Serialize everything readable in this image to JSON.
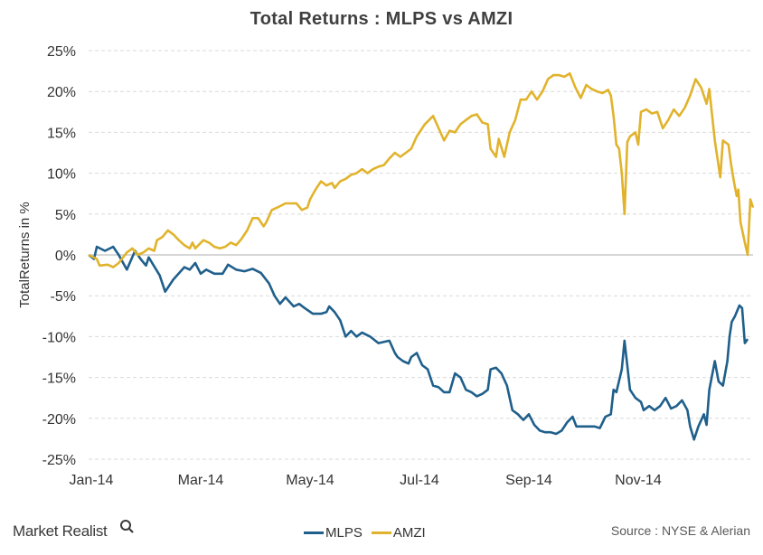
{
  "header": {
    "title": "Total Returns : MLPS vs AMZI"
  },
  "footer": {
    "brand": "Market Realist",
    "source": "Source : NYSE & Alerian"
  },
  "colors": {
    "mlps": "#1f5f8b",
    "amzi": "#e1b32c",
    "grid": "#d9d9d9",
    "zero_line": "#bfbfbf"
  },
  "chart_data": {
    "type": "line",
    "title": "Total Returns : MLPS vs AMZI",
    "ylabel": "TotalReturns in %",
    "xlabel": "",
    "xlim": [
      0,
      11.5
    ],
    "ylim": [
      -25,
      25
    ],
    "grid": true,
    "grid_style": "dashed horizontal",
    "legend_position": "bottom",
    "x_ticks": [
      {
        "x": 0,
        "label": "Jan-14"
      },
      {
        "x": 2,
        "label": "Mar-14"
      },
      {
        "x": 4,
        "label": "May-14"
      },
      {
        "x": 6,
        "label": "Jul-14"
      },
      {
        "x": 8,
        "label": "Sep-14"
      },
      {
        "x": 10,
        "label": "Nov-14"
      }
    ],
    "y_ticks": [
      {
        "y": 25,
        "label": "25%"
      },
      {
        "y": 20,
        "label": "20%"
      },
      {
        "y": 15,
        "label": "15%"
      },
      {
        "y": 10,
        "label": "10%"
      },
      {
        "y": 5,
        "label": "5%"
      },
      {
        "y": 0,
        "label": "0%"
      },
      {
        "y": -5,
        "label": "-5%"
      },
      {
        "y": -10,
        "label": "-10%"
      },
      {
        "y": -15,
        "label": "-15%"
      },
      {
        "y": -20,
        "label": "-20%"
      },
      {
        "y": -25,
        "label": "-25%"
      }
    ],
    "series": [
      {
        "name": "MLPS",
        "color": "#1f5f8b",
        "points": [
          [
            0,
            0
          ],
          [
            0.1,
            -0.5
          ],
          [
            0.15,
            1
          ],
          [
            0.3,
            0.5
          ],
          [
            0.45,
            1
          ],
          [
            0.55,
            0
          ],
          [
            0.7,
            -1.8
          ],
          [
            0.85,
            0.5
          ],
          [
            0.95,
            -0.5
          ],
          [
            1.05,
            -1.3
          ],
          [
            1.1,
            -0.3
          ],
          [
            1.3,
            -2.5
          ],
          [
            1.4,
            -4.5
          ],
          [
            1.55,
            -3
          ],
          [
            1.75,
            -1.5
          ],
          [
            1.85,
            -1.8
          ],
          [
            1.95,
            -1
          ],
          [
            2.05,
            -2.3
          ],
          [
            2.15,
            -1.8
          ],
          [
            2.3,
            -2.3
          ],
          [
            2.45,
            -2.3
          ],
          [
            2.55,
            -1.2
          ],
          [
            2.7,
            -1.8
          ],
          [
            2.85,
            -2
          ],
          [
            3.0,
            -1.7
          ],
          [
            3.15,
            -2.2
          ],
          [
            3.3,
            -3.5
          ],
          [
            3.4,
            -5
          ],
          [
            3.5,
            -6
          ],
          [
            3.6,
            -5.2
          ],
          [
            3.75,
            -6.3
          ],
          [
            3.85,
            -6
          ],
          [
            3.95,
            -6.5
          ],
          [
            4.1,
            -7.2
          ],
          [
            4.25,
            -7.2
          ],
          [
            4.35,
            -7
          ],
          [
            4.4,
            -6.3
          ],
          [
            4.5,
            -7
          ],
          [
            4.6,
            -8
          ],
          [
            4.7,
            -10
          ],
          [
            4.8,
            -9.3
          ],
          [
            4.9,
            -10
          ],
          [
            5.0,
            -9.5
          ],
          [
            5.15,
            -10
          ],
          [
            5.3,
            -10.8
          ],
          [
            5.5,
            -10.5
          ],
          [
            5.6,
            -12
          ],
          [
            5.65,
            -12.5
          ],
          [
            5.75,
            -13
          ],
          [
            5.85,
            -13.3
          ],
          [
            5.9,
            -12.5
          ],
          [
            6.0,
            -12
          ],
          [
            6.1,
            -13.5
          ],
          [
            6.2,
            -14
          ],
          [
            6.3,
            -16
          ],
          [
            6.4,
            -16.2
          ],
          [
            6.5,
            -16.8
          ],
          [
            6.6,
            -16.8
          ],
          [
            6.7,
            -14.5
          ],
          [
            6.8,
            -15
          ],
          [
            6.9,
            -16.5
          ],
          [
            7.0,
            -16.8
          ],
          [
            7.1,
            -17.3
          ],
          [
            7.2,
            -17
          ],
          [
            7.3,
            -16.5
          ],
          [
            7.35,
            -14
          ],
          [
            7.45,
            -13.8
          ],
          [
            7.55,
            -14.5
          ],
          [
            7.65,
            -16
          ],
          [
            7.75,
            -19
          ],
          [
            7.85,
            -19.5
          ],
          [
            7.95,
            -20.2
          ],
          [
            8.05,
            -19.5
          ],
          [
            8.15,
            -20.8
          ],
          [
            8.25,
            -21.5
          ],
          [
            8.35,
            -21.7
          ],
          [
            8.45,
            -21.7
          ],
          [
            8.55,
            -21.9
          ],
          [
            8.65,
            -21.5
          ],
          [
            8.75,
            -20.5
          ],
          [
            8.85,
            -19.8
          ],
          [
            8.92,
            -21
          ],
          [
            9.1,
            -21
          ],
          [
            9.25,
            -21
          ],
          [
            9.35,
            -21.2
          ],
          [
            9.45,
            -19.8
          ],
          [
            9.55,
            -19.5
          ],
          [
            9.6,
            -16.5
          ],
          [
            9.65,
            -16.8
          ],
          [
            9.75,
            -14
          ],
          [
            9.8,
            -10.5
          ],
          [
            9.9,
            -16.5
          ],
          [
            10.0,
            -17.5
          ],
          [
            10.1,
            -18
          ],
          [
            10.15,
            -19
          ],
          [
            10.25,
            -18.5
          ],
          [
            10.35,
            -19
          ],
          [
            10.45,
            -18.5
          ],
          [
            10.55,
            -17.5
          ],
          [
            10.65,
            -18.8
          ],
          [
            10.75,
            -18.5
          ],
          [
            10.85,
            -17.8
          ],
          [
            10.95,
            -19
          ],
          [
            11.0,
            -21
          ],
          [
            11.07,
            -22.6
          ],
          [
            11.15,
            -21
          ],
          [
            11.25,
            -19.5
          ],
          [
            11.3,
            -20.8
          ],
          [
            11.35,
            -16.5
          ],
          [
            11.45,
            -13
          ],
          [
            11.52,
            -15.5
          ],
          [
            11.6,
            -16
          ],
          [
            11.68,
            -13
          ],
          [
            11.72,
            -10
          ],
          [
            11.76,
            -8.2
          ],
          [
            11.82,
            -7.5
          ],
          [
            11.9,
            -6.2
          ],
          [
            11.95,
            -6.5
          ],
          [
            12.0,
            -10.8
          ],
          [
            12.05,
            -10.3
          ]
        ]
      },
      {
        "name": "AMZI",
        "color": "#e1b32c",
        "points": [
          [
            0,
            0
          ],
          [
            0.15,
            -0.5
          ],
          [
            0.2,
            -1.3
          ],
          [
            0.35,
            -1.2
          ],
          [
            0.45,
            -1.5
          ],
          [
            0.55,
            -1
          ],
          [
            0.7,
            0.3
          ],
          [
            0.8,
            0.8
          ],
          [
            0.9,
            0
          ],
          [
            1.0,
            0.3
          ],
          [
            1.1,
            0.8
          ],
          [
            1.2,
            0.5
          ],
          [
            1.25,
            1.8
          ],
          [
            1.35,
            2.2
          ],
          [
            1.45,
            3
          ],
          [
            1.55,
            2.5
          ],
          [
            1.65,
            1.8
          ],
          [
            1.75,
            1.2
          ],
          [
            1.85,
            0.8
          ],
          [
            1.9,
            1.5
          ],
          [
            1.95,
            0.8
          ],
          [
            2.1,
            1.8
          ],
          [
            2.2,
            1.5
          ],
          [
            2.3,
            1
          ],
          [
            2.4,
            0.8
          ],
          [
            2.5,
            1
          ],
          [
            2.6,
            1.5
          ],
          [
            2.7,
            1.2
          ],
          [
            2.8,
            2
          ],
          [
            2.9,
            3
          ],
          [
            3.0,
            4.5
          ],
          [
            3.1,
            4.5
          ],
          [
            3.2,
            3.5
          ],
          [
            3.25,
            4
          ],
          [
            3.35,
            5.5
          ],
          [
            3.45,
            5.8
          ],
          [
            3.6,
            6.3
          ],
          [
            3.8,
            6.3
          ],
          [
            3.9,
            5.5
          ],
          [
            4.0,
            5.8
          ],
          [
            4.05,
            6.8
          ],
          [
            4.15,
            8
          ],
          [
            4.25,
            9
          ],
          [
            4.35,
            8.5
          ],
          [
            4.45,
            8.8
          ],
          [
            4.5,
            8.2
          ],
          [
            4.6,
            9
          ],
          [
            4.7,
            9.3
          ],
          [
            4.8,
            9.8
          ],
          [
            4.9,
            10
          ],
          [
            5.0,
            10.5
          ],
          [
            5.1,
            10
          ],
          [
            5.2,
            10.5
          ],
          [
            5.3,
            10.8
          ],
          [
            5.4,
            11
          ],
          [
            5.5,
            11.8
          ],
          [
            5.6,
            12.5
          ],
          [
            5.7,
            12
          ],
          [
            5.8,
            12.5
          ],
          [
            5.9,
            13
          ],
          [
            6.0,
            14.5
          ],
          [
            6.15,
            16
          ],
          [
            6.3,
            17
          ],
          [
            6.4,
            15.5
          ],
          [
            6.5,
            14
          ],
          [
            6.6,
            15.2
          ],
          [
            6.7,
            15
          ],
          [
            6.8,
            16
          ],
          [
            6.9,
            16.5
          ],
          [
            7.0,
            17
          ],
          [
            7.1,
            17.2
          ],
          [
            7.2,
            16.2
          ],
          [
            7.3,
            16
          ],
          [
            7.35,
            13
          ],
          [
            7.45,
            12
          ],
          [
            7.5,
            14.2
          ],
          [
            7.6,
            12
          ],
          [
            7.7,
            15
          ],
          [
            7.8,
            16.5
          ],
          [
            7.9,
            19
          ],
          [
            8.0,
            19
          ],
          [
            8.1,
            20
          ],
          [
            8.2,
            19
          ],
          [
            8.3,
            20
          ],
          [
            8.4,
            21.5
          ],
          [
            8.5,
            22
          ],
          [
            8.6,
            22
          ],
          [
            8.7,
            21.8
          ],
          [
            8.8,
            22.2
          ],
          [
            8.9,
            20.5
          ],
          [
            9.0,
            19.2
          ],
          [
            9.1,
            20.8
          ],
          [
            9.2,
            20.3
          ],
          [
            9.3,
            20
          ],
          [
            9.4,
            19.8
          ],
          [
            9.5,
            20.2
          ],
          [
            9.55,
            19.5
          ],
          [
            9.6,
            17
          ],
          [
            9.65,
            13.5
          ],
          [
            9.7,
            13
          ],
          [
            9.75,
            10
          ],
          [
            9.8,
            5
          ],
          [
            9.85,
            13.8
          ],
          [
            9.9,
            14.5
          ],
          [
            10.0,
            15
          ],
          [
            10.05,
            13.5
          ],
          [
            10.1,
            17.5
          ],
          [
            10.2,
            17.8
          ],
          [
            10.3,
            17.3
          ],
          [
            10.4,
            17.5
          ],
          [
            10.5,
            15.5
          ],
          [
            10.6,
            16.5
          ],
          [
            10.7,
            17.8
          ],
          [
            10.8,
            17
          ],
          [
            10.9,
            18
          ],
          [
            11.0,
            19.5
          ],
          [
            11.1,
            21.5
          ],
          [
            11.2,
            20.5
          ],
          [
            11.3,
            18.5
          ],
          [
            11.35,
            20.3
          ],
          [
            11.45,
            14
          ],
          [
            11.55,
            9.5
          ],
          [
            11.6,
            14
          ],
          [
            11.7,
            13.5
          ],
          [
            11.75,
            11
          ],
          [
            11.8,
            9
          ],
          [
            11.85,
            7.2
          ],
          [
            11.88,
            8
          ],
          [
            11.92,
            4
          ],
          [
            12.0,
            1.5
          ],
          [
            12.05,
            0
          ],
          [
            12.1,
            6.8
          ],
          [
            12.15,
            5.8
          ]
        ]
      }
    ]
  }
}
